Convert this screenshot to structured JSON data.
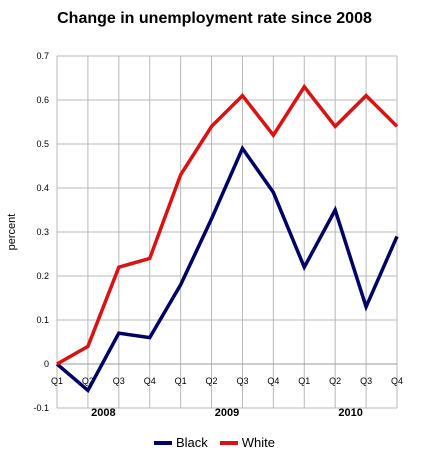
{
  "chart_data": {
    "type": "line",
    "title": "Change in unemployment rate since 2008",
    "ylabel": "percent",
    "xlabel": "",
    "ylim": [
      -0.1,
      0.7
    ],
    "yticks": [
      "-0.1",
      "0",
      "0.1",
      "0.2",
      "0.3",
      "0.4",
      "0.5",
      "0.6",
      "0.7"
    ],
    "categories": [
      "Q1",
      "Q2",
      "Q3",
      "Q4",
      "Q1",
      "Q2",
      "Q3",
      "Q4",
      "Q1",
      "Q2",
      "Q3",
      "Q4"
    ],
    "years": [
      "2008",
      "2009",
      "2010"
    ],
    "grid": true,
    "legend_position": "bottom",
    "series": [
      {
        "name": "Black",
        "color": "#000066",
        "values": [
          0.0,
          -0.06,
          0.07,
          0.06,
          0.18,
          0.33,
          0.49,
          0.39,
          0.22,
          0.35,
          0.13,
          0.29
        ]
      },
      {
        "name": "White",
        "color": "#dd1111",
        "values": [
          0.0,
          0.04,
          0.22,
          0.24,
          0.43,
          0.54,
          0.61,
          0.52,
          0.63,
          0.54,
          0.61,
          0.54
        ]
      }
    ]
  }
}
